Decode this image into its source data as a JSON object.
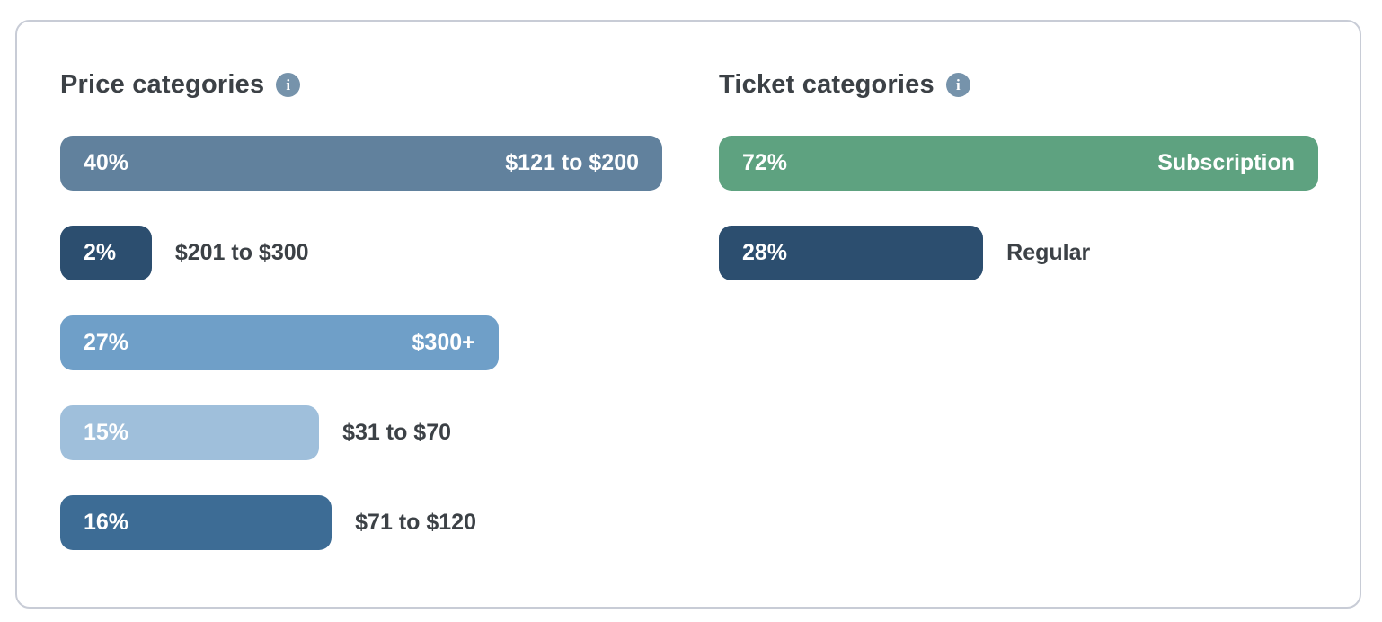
{
  "card": {
    "background": "#FFFFFF",
    "border_color": "#C8CCD6"
  },
  "icons": {
    "info_glyph": "i",
    "info_bg_color": "#7693AB"
  },
  "sections": [
    {
      "title": "Price categories",
      "bars": [
        {
          "percent": "40%",
          "label": "$121 to $200",
          "color": "#61819D",
          "width_frac": 100,
          "label_inside": true
        },
        {
          "percent": "2%",
          "label": "$201 to $300",
          "color": "#2C4E6F",
          "width_frac": 15.2,
          "label_inside": false
        },
        {
          "percent": "27%",
          "label": "$300+",
          "color": "#6F9FC8",
          "width_frac": 72.8,
          "label_inside": true
        },
        {
          "percent": "15%",
          "label": "$31 to $70",
          "color": "#9FBFDB",
          "width_frac": 43.0,
          "label_inside": false
        },
        {
          "percent": "16%",
          "label": "$71 to $120",
          "color": "#3D6C95",
          "width_frac": 45.1,
          "label_inside": false
        }
      ]
    },
    {
      "title": "Ticket categories",
      "bars": [
        {
          "percent": "72%",
          "label": "Subscription",
          "color": "#5EA280",
          "width_frac": 100,
          "label_inside": true
        },
        {
          "percent": "28%",
          "label": "Regular",
          "color": "#2C4E6F",
          "width_frac": 44.1,
          "label_inside": false
        }
      ]
    }
  ],
  "chart_data": [
    {
      "type": "bar",
      "orientation": "horizontal",
      "title": "Price categories",
      "categories": [
        "$121 to $200",
        "$201 to $300",
        "$300+",
        "$31 to $70",
        "$71 to $120"
      ],
      "values": [
        40,
        2,
        27,
        15,
        16
      ],
      "unit": "%",
      "bar_colors": [
        "#61819D",
        "#2C4E6F",
        "#6F9FC8",
        "#9FBFDB",
        "#3D6C95"
      ],
      "value_label_position": "inside-left",
      "category_label_position": "inside-right when bar is wide, otherwise right of bar",
      "grid": false,
      "axes": false
    },
    {
      "type": "bar",
      "orientation": "horizontal",
      "title": "Ticket categories",
      "categories": [
        "Subscription",
        "Regular"
      ],
      "values": [
        72,
        28
      ],
      "unit": "%",
      "bar_colors": [
        "#5EA280",
        "#2C4E6F"
      ],
      "value_label_position": "inside-left",
      "category_label_position": "inside-right when bar is wide, otherwise right of bar",
      "grid": false,
      "axes": false
    }
  ]
}
